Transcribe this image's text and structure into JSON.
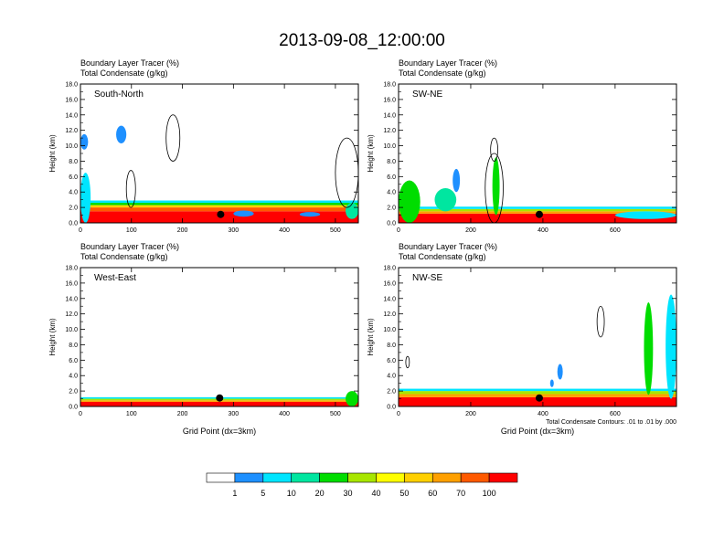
{
  "title": "2013-09-08_12:00:00",
  "colorbar": {
    "labels": [
      "1",
      "5",
      "10",
      "20",
      "30",
      "40",
      "50",
      "60",
      "70",
      "100"
    ],
    "colors": [
      "#ffffff",
      "#1e90ff",
      "#00e5ff",
      "#00e6a0",
      "#00dd00",
      "#a8e600",
      "#ffff00",
      "#ffd000",
      "#ffa000",
      "#ff5a00",
      "#ff0000"
    ]
  },
  "chart_data": [
    {
      "type": "heatmap",
      "panel_label": "South-North",
      "subtitle1": "Boundary Layer Tracer   (%)",
      "subtitle2": "Total Condensate   (g/kg)",
      "ylabel": "Height (km)",
      "xlabel": "",
      "x_ticks": [
        "0",
        "100",
        "200",
        "300",
        "400",
        "500"
      ],
      "xmax": 545,
      "y_ticks": [
        "0.0",
        "2.0",
        "4.0",
        "6.0",
        "8.0",
        "10.0",
        "12.0",
        "14.0",
        "16.0",
        "18.0"
      ],
      "ylim": [
        0,
        18
      ],
      "marker": {
        "x": 275,
        "y": 1.1
      },
      "note": ""
    },
    {
      "type": "heatmap",
      "panel_label": "SW-NE",
      "subtitle1": "Boundary Layer Tracer   (%)",
      "subtitle2": "Total Condensate   (g/kg)",
      "ylabel": "Height (km)",
      "xlabel": "",
      "x_ticks": [
        "0",
        "200",
        "400",
        "600"
      ],
      "xmax": 770,
      "y_ticks": [
        "0.0",
        "2.0",
        "4.0",
        "6.0",
        "8.0",
        "10.0",
        "12.0",
        "14.0",
        "16.0",
        "18.0"
      ],
      "ylim": [
        0,
        18
      ],
      "marker": {
        "x": 390,
        "y": 1.1
      },
      "note": ""
    },
    {
      "type": "heatmap",
      "panel_label": "West-East",
      "subtitle1": "Boundary Layer Tracer   (%)",
      "subtitle2": "Total Condensate   (g/kg)",
      "ylabel": "Height (km)",
      "xlabel": "Grid Point (dx=3km)",
      "x_ticks": [
        "0",
        "100",
        "200",
        "300",
        "400",
        "500"
      ],
      "xmax": 545,
      "y_ticks": [
        "0.0",
        "2.0",
        "4.0",
        "6.0",
        "8.0",
        "10.0",
        "12.0",
        "14.0",
        "16.0",
        "18.0"
      ],
      "ylim": [
        0,
        18
      ],
      "marker": {
        "x": 273,
        "y": 1.1
      },
      "note": ""
    },
    {
      "type": "heatmap",
      "panel_label": "NW-SE",
      "subtitle1": "Boundary Layer Tracer   (%)",
      "subtitle2": "Total Condensate   (g/kg)",
      "ylabel": "Height (km)",
      "xlabel": "Grid Point (dx=3km)",
      "x_ticks": [
        "0",
        "200",
        "400",
        "600"
      ],
      "xmax": 770,
      "y_ticks": [
        "0.0",
        "2.0",
        "4.0",
        "6.0",
        "8.0",
        "10.0",
        "12.0",
        "14.0",
        "16.0",
        "18.0"
      ],
      "ylim": [
        0,
        18
      ],
      "marker": {
        "x": 390,
        "y": 1.1
      },
      "note": "Total Condensate Contours: .01 to .01 by .000"
    }
  ]
}
